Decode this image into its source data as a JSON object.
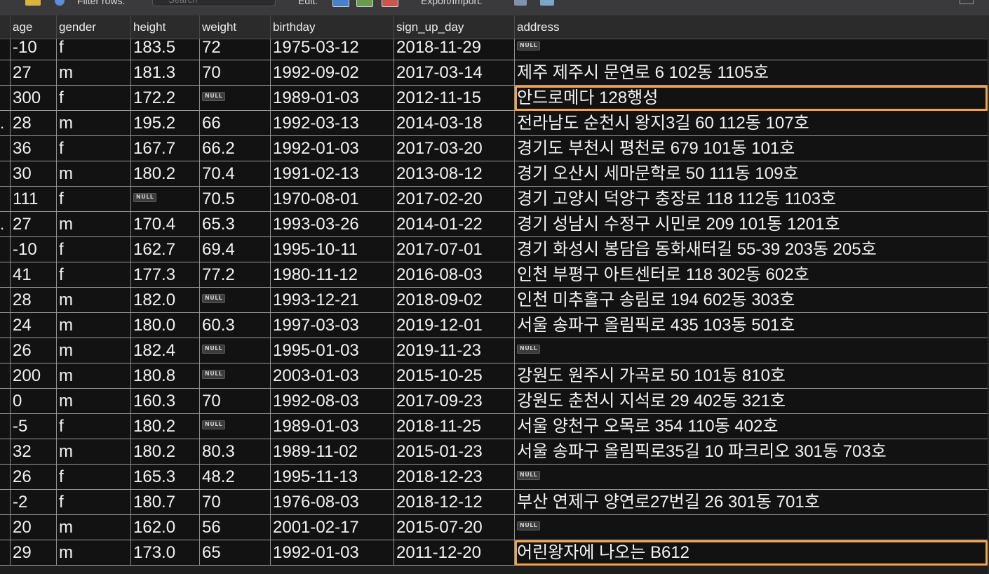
{
  "toolbar": {
    "filter_label": "Filter rows:",
    "search_placeholder": "Search",
    "edit_label": "Edit:",
    "export_label": "Export/Import:"
  },
  "null_text": "NULL",
  "columns": [
    "age",
    "gender",
    "height",
    "weight",
    "birthday",
    "sign_up_day",
    "address"
  ],
  "rows": [
    {
      "age": "-10",
      "gender": "f",
      "height": "183.5",
      "weight": "72",
      "birthday": "1975-03-12",
      "sign_up_day": "2018-11-29",
      "address": null
    },
    {
      "age": "27",
      "gender": "m",
      "height": "181.3",
      "weight": "70",
      "birthday": "1992-09-02",
      "sign_up_day": "2017-03-14",
      "address": "제주 제주시 문연로 6 102동 1105호"
    },
    {
      "age": "300",
      "gender": "f",
      "height": "172.2",
      "weight": null,
      "birthday": "1989-01-03",
      "sign_up_day": "2012-11-15",
      "address": "안드로메다 128행성"
    },
    {
      "age": "28",
      "gender": "m",
      "height": "195.2",
      "weight": "66",
      "birthday": "1992-03-13",
      "sign_up_day": "2014-03-18",
      "address": "전라남도 순천시 왕지3길 60 112동 107호"
    },
    {
      "age": "36",
      "gender": "f",
      "height": "167.7",
      "weight": "66.2",
      "birthday": "1992-01-03",
      "sign_up_day": "2017-03-20",
      "address": "경기도 부천시 평천로 679 101동 101호"
    },
    {
      "age": "30",
      "gender": "m",
      "height": "180.2",
      "weight": "70.4",
      "birthday": "1991-02-13",
      "sign_up_day": "2013-08-12",
      "address": "경기 오산시 세마문학로 50 111동 109호"
    },
    {
      "age": "111",
      "gender": "f",
      "height": null,
      "weight": "70.5",
      "birthday": "1970-08-01",
      "sign_up_day": "2017-02-20",
      "address": "경기 고양시 덕양구 충장로 118 112동 1103호"
    },
    {
      "age": "27",
      "gender": "m",
      "height": "170.4",
      "weight": "65.3",
      "birthday": "1993-03-26",
      "sign_up_day": "2014-01-22",
      "address": "경기 성남시 수정구 시민로 209 101동 1201호"
    },
    {
      "age": "-10",
      "gender": "f",
      "height": "162.7",
      "weight": "69.4",
      "birthday": "1995-10-11",
      "sign_up_day": "2017-07-01",
      "address": "경기 화성시 봉담읍 동화새터길 55-39 203동 205호"
    },
    {
      "age": "41",
      "gender": "f",
      "height": "177.3",
      "weight": "77.2",
      "birthday": "1980-11-12",
      "sign_up_day": "2016-08-03",
      "address": "인천 부평구 아트센터로 118 302동 602호"
    },
    {
      "age": "28",
      "gender": "m",
      "height": "182.0",
      "weight": null,
      "birthday": "1993-12-21",
      "sign_up_day": "2018-09-02",
      "address": "인천 미추홀구 송림로 194 602동 303호"
    },
    {
      "age": "24",
      "gender": "m",
      "height": "180.0",
      "weight": "60.3",
      "birthday": "1997-03-03",
      "sign_up_day": "2019-12-01",
      "address": "서울 송파구 올림픽로 435 103동 501호"
    },
    {
      "age": "26",
      "gender": "m",
      "height": "182.4",
      "weight": null,
      "birthday": "1995-01-03",
      "sign_up_day": "2019-11-23",
      "address": null
    },
    {
      "age": "200",
      "gender": "m",
      "height": "180.8",
      "weight": null,
      "birthday": "2003-01-03",
      "sign_up_day": "2015-10-25",
      "address": "강원도 원주시 가곡로 50 101동 810호"
    },
    {
      "age": "0",
      "gender": "m",
      "height": "160.3",
      "weight": "70",
      "birthday": "1992-08-03",
      "sign_up_day": "2017-09-23",
      "address": "강원도 춘천시 지석로 29 402동 321호"
    },
    {
      "age": "-5",
      "gender": "f",
      "height": "180.2",
      "weight": null,
      "birthday": "1989-01-03",
      "sign_up_day": "2018-11-25",
      "address": "서울 양천구 오목로 354 110동 402호"
    },
    {
      "age": "32",
      "gender": "m",
      "height": "180.2",
      "weight": "80.3",
      "birthday": "1989-11-02",
      "sign_up_day": "2015-01-23",
      "address": "서울 송파구 올림픽로35길 10 파크리오 301동 703호"
    },
    {
      "age": "26",
      "gender": "f",
      "height": "165.3",
      "weight": "48.2",
      "birthday": "1995-11-13",
      "sign_up_day": "2018-12-23",
      "address": null
    },
    {
      "age": "-2",
      "gender": "f",
      "height": "180.7",
      "weight": "70",
      "birthday": "1976-08-03",
      "sign_up_day": "2018-12-12",
      "address": "부산 연제구 양연로27번길 26 301동 701호"
    },
    {
      "age": "20",
      "gender": "m",
      "height": "162.0",
      "weight": "56",
      "birthday": "2001-02-17",
      "sign_up_day": "2015-07-20",
      "address": null
    },
    {
      "age": "29",
      "gender": "m",
      "height": "173.0",
      "weight": "65",
      "birthday": "1992-01-03",
      "sign_up_day": "2011-12-20",
      "address": "어린왕자에 나오는 B612"
    }
  ],
  "gutter_dots": [
    3,
    7
  ],
  "highlighted_rows": [
    2,
    20
  ],
  "colors": {
    "highlight": "#f2a24a",
    "row_bg": "#121212",
    "grid_line": "#9a9a9a"
  }
}
